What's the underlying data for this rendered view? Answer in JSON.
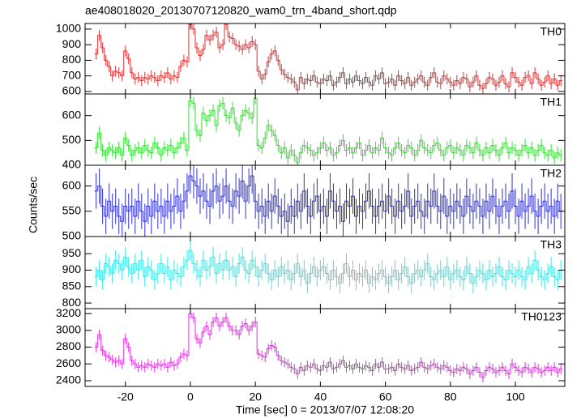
{
  "chart_data": {
    "type": "step",
    "title": "ae408018020_20130707120820_wam0_trn_4band_short.qdp",
    "xlabel": "Time [sec] 0 = 2013/07/07 12:08:20",
    "ylabel": "Counts/sec",
    "xlim": [
      -32.4,
      115.2
    ],
    "xticks": [
      -20,
      0,
      20,
      40,
      60,
      80,
      100
    ],
    "x": [
      -29,
      -28,
      -27,
      -26,
      -25,
      -24,
      -23,
      -22,
      -21,
      -20,
      -19,
      -18,
      -17,
      -16,
      -15,
      -14,
      -13,
      -12,
      -11,
      -10,
      -9,
      -8,
      -7,
      -6,
      -5,
      -4,
      -3,
      -2,
      -1,
      0,
      1,
      2,
      3,
      4,
      5,
      6,
      7,
      8,
      9,
      10,
      11,
      12,
      13,
      14,
      15,
      16,
      17,
      18,
      19,
      20,
      21,
      22,
      23,
      24,
      25,
      26,
      27,
      28,
      29,
      30,
      31,
      32,
      33,
      34,
      35,
      36,
      37,
      38,
      39,
      40,
      41,
      42,
      43,
      44,
      45,
      46,
      47,
      48,
      49,
      50,
      51,
      52,
      53,
      54,
      55,
      56,
      57,
      58,
      59,
      60,
      61,
      62,
      63,
      64,
      65,
      66,
      67,
      68,
      69,
      70,
      71,
      72,
      73,
      74,
      75,
      76,
      77,
      78,
      79,
      80,
      81,
      82,
      83,
      84,
      85,
      86,
      87,
      88,
      89,
      90,
      91,
      92,
      93,
      94,
      95,
      96,
      97,
      98,
      99,
      100,
      101,
      102,
      103,
      104,
      105,
      106,
      107,
      108,
      109,
      110,
      111,
      112,
      113,
      114
    ],
    "panels": [
      {
        "name": "TH0",
        "color": "#e03030",
        "ylim": [
          584,
          1036
        ],
        "yticks": [
          600,
          700,
          800,
          900,
          1000
        ],
        "error": 35,
        "values": [
          840,
          960,
          880,
          800,
          760,
          700,
          730,
          720,
          700,
          860,
          810,
          720,
          680,
          690,
          670,
          690,
          680,
          700,
          690,
          670,
          700,
          690,
          720,
          680,
          700,
          690,
          760,
          800,
          790,
          1030,
          1000,
          880,
          830,
          870,
          960,
          930,
          960,
          980,
          880,
          900,
          1030,
          950,
          940,
          900,
          890,
          870,
          900,
          880,
          920,
          900,
          730,
          680,
          710,
          790,
          840,
          860,
          800,
          740,
          710,
          690,
          680,
          660,
          610,
          690,
          650,
          680,
          670,
          700,
          660,
          650,
          680,
          670,
          700,
          640,
          660,
          690,
          720,
          650,
          680,
          660,
          700,
          670,
          650,
          690,
          660,
          640,
          700,
          680,
          720,
          650,
          660,
          680,
          640,
          700,
          670,
          650,
          690,
          640,
          660,
          680,
          700,
          660,
          640,
          690,
          720,
          660,
          650,
          700,
          680,
          660,
          640,
          670,
          650,
          690,
          680,
          630,
          660,
          700,
          640,
          620,
          650,
          690,
          680,
          640,
          660,
          700,
          650,
          630,
          720,
          690,
          660,
          640,
          690,
          700,
          650,
          720,
          680,
          640,
          660,
          700,
          650,
          680,
          640,
          670
        ]
      },
      {
        "name": "TH1",
        "color": "#30e030",
        "ylim": [
          400,
          687
        ],
        "yticks": [
          400,
          500,
          600
        ],
        "error": 25,
        "values": [
          470,
          530,
          460,
          440,
          470,
          460,
          450,
          470,
          440,
          510,
          480,
          440,
          460,
          470,
          450,
          480,
          460,
          450,
          490,
          470,
          440,
          470,
          460,
          480,
          450,
          470,
          490,
          510,
          460,
          660,
          650,
          540,
          520,
          610,
          580,
          600,
          620,
          560,
          640,
          650,
          600,
          590,
          630,
          570,
          540,
          600,
          620,
          610,
          590,
          670,
          480,
          470,
          510,
          560,
          540,
          520,
          480,
          450,
          470,
          430,
          460,
          440,
          410,
          450,
          480,
          470,
          460,
          440,
          450,
          470,
          490,
          460,
          470,
          440,
          450,
          480,
          500,
          460,
          470,
          450,
          470,
          490,
          440,
          460,
          480,
          450,
          470,
          460,
          510,
          470,
          450,
          440,
          470,
          490,
          460,
          450,
          480,
          470,
          440,
          460,
          500,
          470,
          460,
          450,
          480,
          490,
          460,
          440,
          470,
          480,
          450,
          470,
          460,
          440,
          480,
          470,
          450,
          490,
          460,
          440,
          470,
          450,
          480,
          460,
          440,
          470,
          490,
          450,
          470,
          460,
          440,
          460,
          480,
          450,
          470,
          440,
          460,
          480,
          450,
          440,
          460,
          430,
          450,
          440
        ]
      },
      {
        "name": "TH2",
        "color": "#3030d0",
        "ylim": [
          500,
          641
        ],
        "yticks": [
          500,
          550,
          600
        ],
        "error": 35,
        "values": [
          590,
          600,
          560,
          540,
          570,
          550,
          560,
          540,
          530,
          560,
          550,
          560,
          540,
          570,
          550,
          530,
          560,
          540,
          570,
          550,
          560,
          540,
          570,
          550,
          560,
          580,
          550,
          570,
          590,
          620,
          610,
          600,
          580,
          590,
          570,
          560,
          590,
          600,
          570,
          580,
          600,
          570,
          560,
          590,
          580,
          610,
          570,
          600,
          620,
          570,
          550,
          560,
          540,
          570,
          550,
          580,
          560,
          540,
          550,
          530,
          560,
          540,
          570,
          550,
          590,
          560,
          540,
          570,
          580,
          550,
          560,
          540,
          590,
          570,
          550,
          560,
          530,
          570,
          560,
          580,
          540,
          560,
          550,
          570,
          590,
          560,
          540,
          560,
          570,
          550,
          580,
          560,
          540,
          570,
          550,
          560,
          590,
          540,
          560,
          570,
          550,
          540,
          570,
          560,
          590,
          560,
          550,
          580,
          540,
          560,
          550,
          570,
          560,
          540,
          580,
          560,
          550,
          570,
          560,
          540,
          570,
          550,
          580,
          560,
          540,
          560,
          570,
          550,
          590,
          560,
          540,
          570,
          550,
          560,
          580,
          550,
          540,
          560,
          570,
          550,
          560,
          540,
          570,
          550
        ]
      },
      {
        "name": "TH3",
        "color": "#30e8e8",
        "ylim": [
          783,
          1002
        ],
        "yticks": [
          800,
          850,
          900,
          950
        ],
        "error": 30,
        "values": [
          880,
          900,
          870,
          920,
          910,
          890,
          930,
          920,
          900,
          940,
          910,
          890,
          920,
          900,
          930,
          880,
          910,
          900,
          870,
          890,
          920,
          890,
          910,
          870,
          900,
          890,
          880,
          910,
          930,
          960,
          920,
          900,
          880,
          930,
          900,
          910,
          940,
          890,
          920,
          900,
          930,
          900,
          910,
          880,
          920,
          940,
          900,
          890,
          930,
          910,
          880,
          900,
          920,
          890,
          870,
          900,
          880,
          910,
          890,
          900,
          870,
          890,
          920,
          880,
          900,
          860,
          890,
          910,
          880,
          900,
          910,
          890,
          870,
          900,
          880,
          860,
          890,
          920,
          880,
          900,
          870,
          890,
          880,
          900,
          860,
          880,
          870,
          890,
          900,
          880,
          860,
          880,
          900,
          870,
          890,
          910,
          880,
          860,
          890,
          900,
          880,
          900,
          920,
          880,
          870,
          890,
          900,
          880,
          910,
          870,
          890,
          900,
          880,
          870,
          910,
          890,
          860,
          880,
          900,
          890,
          870,
          900,
          880,
          890,
          910,
          880,
          870,
          900,
          890,
          880,
          900,
          880,
          870,
          910,
          890,
          930,
          900,
          880,
          870,
          890,
          910,
          880,
          870,
          900
        ]
      },
      {
        "name": "TH0123",
        "color": "#e030e0",
        "ylim": [
          2332,
          3259
        ],
        "yticks": [
          2400,
          2600,
          2800,
          3000,
          3200
        ],
        "error": 60,
        "values": [
          2800,
          2950,
          2760,
          2700,
          2680,
          2650,
          2620,
          2640,
          2600,
          2900,
          2800,
          2640,
          2600,
          2560,
          2580,
          2560,
          2600,
          2580,
          2560,
          2600,
          2580,
          2600,
          2560,
          2620,
          2580,
          2600,
          2680,
          2720,
          2700,
          3200,
          3150,
          2900,
          2850,
          2980,
          3050,
          2950,
          3100,
          3150,
          3050,
          3100,
          3150,
          3050,
          3000,
          3000,
          2950,
          3050,
          3080,
          3000,
          3050,
          3100,
          2720,
          2700,
          2680,
          2780,
          2820,
          2800,
          2700,
          2640,
          2620,
          2600,
          2560,
          2540,
          2480,
          2560,
          2520,
          2580,
          2560,
          2600,
          2540,
          2520,
          2580,
          2560,
          2620,
          2540,
          2560,
          2600,
          2640,
          2560,
          2580,
          2540,
          2600,
          2560,
          2540,
          2580,
          2560,
          2520,
          2600,
          2560,
          2620,
          2540,
          2540,
          2560,
          2520,
          2600,
          2560,
          2540,
          2580,
          2520,
          2540,
          2560,
          2620,
          2560,
          2540,
          2580,
          2600,
          2560,
          2540,
          2580,
          2560,
          2520,
          2500,
          2540,
          2520,
          2560,
          2540,
          2480,
          2520,
          2560,
          2500,
          2440,
          2520,
          2560,
          2540,
          2500,
          2520,
          2560,
          2520,
          2480,
          2600,
          2560,
          2520,
          2500,
          2560,
          2540,
          2500,
          2560,
          2540,
          2500,
          2520,
          2560,
          2520,
          2560,
          2500,
          2540
        ]
      }
    ]
  }
}
